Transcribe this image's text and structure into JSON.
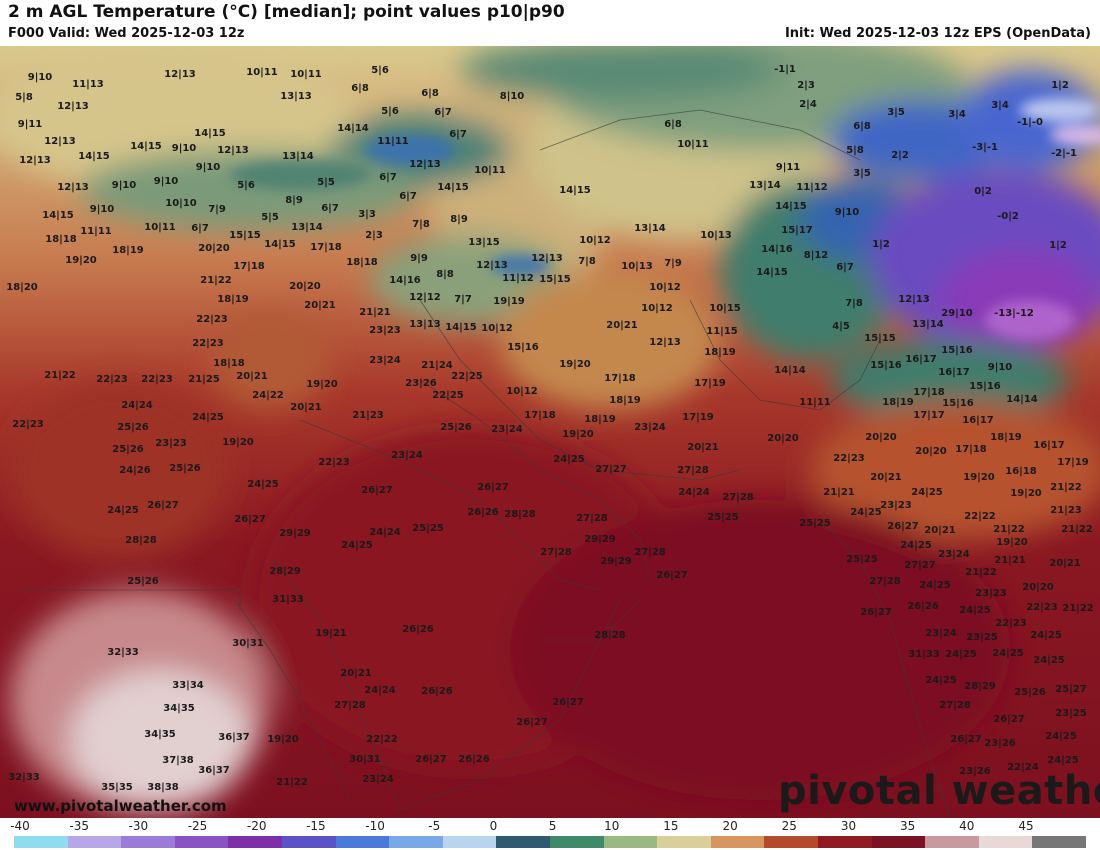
{
  "header": {
    "title": "2 m AGL Temperature (°C) [median]; point values p10|p90",
    "valid": "F000 Valid: Wed 2025-12-03 12z",
    "init": "Init: Wed 2025-12-03 12z EPS (OpenData)"
  },
  "footer": {
    "website": "www.pivotalweather.com",
    "brand": "pivotal weather"
  },
  "colorbar": {
    "ticks": [
      "-40",
      "-35",
      "-30",
      "-25",
      "-20",
      "-15",
      "-10",
      "-5",
      "0",
      "5",
      "10",
      "15",
      "20",
      "25",
      "30",
      "35",
      "40",
      "45"
    ],
    "colors": [
      "#8fdcf0",
      "#b7a6e8",
      "#9a7bd8",
      "#8a52c4",
      "#7e2fa8",
      "#5b52c8",
      "#4a7ad9",
      "#79a8e8",
      "#b8d4ef",
      "#2e5b70",
      "#3d8a6a",
      "#9bb782",
      "#d9cf9a",
      "#d79560",
      "#b5492b",
      "#8f1a22",
      "#7a1124",
      "#c89aa0",
      "#e8d8d8",
      "#777777"
    ]
  },
  "map": {
    "colors": {
      "cold": "#4a68c8",
      "cool": "#3f7d6c",
      "mild": "#d8cb8e",
      "warm": "#b8432d",
      "hot": "#82121f"
    },
    "points": [
      [
        "9|10",
        40,
        80
      ],
      [
        "11|13",
        88,
        87
      ],
      [
        "12|13",
        180,
        77
      ],
      [
        "10|11",
        262,
        75
      ],
      [
        "10|11",
        306,
        77
      ],
      [
        "5|6",
        380,
        73
      ],
      [
        "-1|1",
        785,
        72
      ],
      [
        "1|2",
        1060,
        88
      ],
      [
        "5|8",
        24,
        100
      ],
      [
        "12|13",
        73,
        109
      ],
      [
        "13|13",
        296,
        99
      ],
      [
        "6|8",
        360,
        91
      ],
      [
        "6|8",
        430,
        96
      ],
      [
        "8|10",
        512,
        99
      ],
      [
        "2|3",
        806,
        88
      ],
      [
        "9|11",
        30,
        127
      ],
      [
        "2|4",
        808,
        107
      ],
      [
        "3|5",
        896,
        115
      ],
      [
        "3|4",
        957,
        117
      ],
      [
        "3|4",
        1000,
        108
      ],
      [
        "-1|-0",
        1030,
        125
      ],
      [
        "14|15",
        210,
        136
      ],
      [
        "14|14",
        353,
        131
      ],
      [
        "5|6",
        390,
        114
      ],
      [
        "6|7",
        443,
        115
      ],
      [
        "6|8",
        673,
        127
      ],
      [
        "6|8",
        862,
        129
      ],
      [
        "2|2",
        900,
        158
      ],
      [
        "12|13",
        60,
        144
      ],
      [
        "14|15",
        146,
        149
      ],
      [
        "9|10",
        184,
        151
      ],
      [
        "12|13",
        233,
        153
      ],
      [
        "11|11",
        393,
        144
      ],
      [
        "6|7",
        458,
        137
      ],
      [
        "10|11",
        693,
        147
      ],
      [
        "5|8",
        855,
        153
      ],
      [
        "-3|-1",
        985,
        150
      ],
      [
        "-2|-1",
        1064,
        156
      ],
      [
        "12|13",
        35,
        163
      ],
      [
        "14|15",
        94,
        159
      ],
      [
        "13|14",
        298,
        159
      ],
      [
        "12|13",
        425,
        167
      ],
      [
        "10|11",
        490,
        173
      ],
      [
        "9|11",
        788,
        170
      ],
      [
        "3|5",
        862,
        176
      ],
      [
        "12|13",
        73,
        190
      ],
      [
        "9|10",
        124,
        188
      ],
      [
        "9|10",
        166,
        184
      ],
      [
        "9|10",
        208,
        170
      ],
      [
        "5|6",
        246,
        188
      ],
      [
        "5|5",
        326,
        185
      ],
      [
        "6|7",
        388,
        180
      ],
      [
        "14|15",
        453,
        190
      ],
      [
        "14|15",
        575,
        193
      ],
      [
        "13|14",
        765,
        188
      ],
      [
        "11|12",
        812,
        190
      ],
      [
        "0|2",
        983,
        194
      ],
      [
        "14|15",
        58,
        218
      ],
      [
        "9|10",
        102,
        212
      ],
      [
        "10|10",
        181,
        206
      ],
      [
        "7|9",
        217,
        212
      ],
      [
        "8|9",
        294,
        203
      ],
      [
        "6|7",
        330,
        211
      ],
      [
        "3|3",
        367,
        217
      ],
      [
        "6|7",
        408,
        199
      ],
      [
        "14|15",
        791,
        209
      ],
      [
        "9|10",
        847,
        215
      ],
      [
        "-0|2",
        1008,
        219
      ],
      [
        "11|11",
        96,
        234
      ],
      [
        "10|11",
        160,
        230
      ],
      [
        "6|7",
        200,
        231
      ],
      [
        "5|5",
        270,
        220
      ],
      [
        "13|14",
        307,
        230
      ],
      [
        "7|8",
        421,
        227
      ],
      [
        "8|9",
        459,
        222
      ],
      [
        "13|14",
        650,
        231
      ],
      [
        "15|17",
        797,
        233
      ],
      [
        "18|18",
        61,
        242
      ],
      [
        "15|15",
        245,
        238
      ],
      [
        "14|15",
        280,
        247
      ],
      [
        "17|18",
        326,
        250
      ],
      [
        "2|3",
        374,
        238
      ],
      [
        "13|15",
        484,
        245
      ],
      [
        "10|12",
        595,
        243
      ],
      [
        "10|13",
        716,
        238
      ],
      [
        "14|16",
        777,
        252
      ],
      [
        "1|2",
        881,
        247
      ],
      [
        "1|2",
        1058,
        248
      ],
      [
        "19|20",
        81,
        263
      ],
      [
        "18|19",
        128,
        253
      ],
      [
        "20|20",
        214,
        251
      ],
      [
        "17|18",
        249,
        269
      ],
      [
        "18|18",
        362,
        265
      ],
      [
        "9|9",
        419,
        261
      ],
      [
        "12|13",
        492,
        268
      ],
      [
        "12|13",
        547,
        261
      ],
      [
        "7|8",
        587,
        264
      ],
      [
        "10|13",
        637,
        269
      ],
      [
        "7|9",
        673,
        266
      ],
      [
        "8|12",
        816,
        258
      ],
      [
        "6|7",
        845,
        270
      ],
      [
        "18|20",
        22,
        290
      ],
      [
        "21|22",
        216,
        283
      ],
      [
        "14|16",
        405,
        283
      ],
      [
        "8|8",
        445,
        277
      ],
      [
        "11|12",
        518,
        281
      ],
      [
        "15|15",
        555,
        282
      ],
      [
        "20|20",
        305,
        289
      ],
      [
        "10|12",
        665,
        290
      ],
      [
        "14|15",
        772,
        275
      ],
      [
        "18|19",
        233,
        302
      ],
      [
        "12|12",
        425,
        300
      ],
      [
        "7|7",
        463,
        302
      ],
      [
        "19|19",
        509,
        304
      ],
      [
        "20|21",
        320,
        308
      ],
      [
        "10|15",
        725,
        311
      ],
      [
        "10|12",
        657,
        311
      ],
      [
        "7|8",
        854,
        306
      ],
      [
        "12|13",
        914,
        302
      ],
      [
        "29|10",
        957,
        316
      ],
      [
        "-13|-12",
        1014,
        316
      ],
      [
        "22|23",
        212,
        322
      ],
      [
        "21|21",
        375,
        315
      ],
      [
        "13|13",
        425,
        327
      ],
      [
        "14|15",
        461,
        330
      ],
      [
        "10|12",
        497,
        331
      ],
      [
        "20|21",
        622,
        328
      ],
      [
        "11|15",
        722,
        334
      ],
      [
        "4|5",
        841,
        329
      ],
      [
        "13|14",
        928,
        327
      ],
      [
        "22|23",
        208,
        346
      ],
      [
        "23|23",
        385,
        333
      ],
      [
        "12|13",
        665,
        345
      ],
      [
        "15|15",
        880,
        341
      ],
      [
        "15|16",
        957,
        353
      ],
      [
        "18|18",
        229,
        366
      ],
      [
        "23|24",
        385,
        363
      ],
      [
        "21|24",
        437,
        368
      ],
      [
        "15|16",
        523,
        350
      ],
      [
        "19|20",
        575,
        367
      ],
      [
        "18|19",
        720,
        355
      ],
      [
        "16|17",
        921,
        362
      ],
      [
        "15|16",
        886,
        368
      ],
      [
        "16|17",
        954,
        375
      ],
      [
        "9|10",
        1000,
        370
      ],
      [
        "21|22",
        60,
        378
      ],
      [
        "22|23",
        112,
        382
      ],
      [
        "22|23",
        157,
        382
      ],
      [
        "21|25",
        204,
        382
      ],
      [
        "20|21",
        252,
        379
      ],
      [
        "19|20",
        322,
        387
      ],
      [
        "23|26",
        421,
        386
      ],
      [
        "22|25",
        467,
        379
      ],
      [
        "17|18",
        620,
        381
      ],
      [
        "17|19",
        710,
        386
      ],
      [
        "14|14",
        790,
        373
      ],
      [
        "15|16",
        985,
        389
      ],
      [
        "24|24",
        137,
        408
      ],
      [
        "24|22",
        268,
        398
      ],
      [
        "22|25",
        448,
        398
      ],
      [
        "10|12",
        522,
        394
      ],
      [
        "18|19",
        625,
        403
      ],
      [
        "17|18",
        929,
        395
      ],
      [
        "18|19",
        898,
        405
      ],
      [
        "15|16",
        958,
        406
      ],
      [
        "14|14",
        1022,
        402
      ],
      [
        "11|11",
        815,
        405
      ],
      [
        "20|21",
        306,
        410
      ],
      [
        "21|23",
        368,
        418
      ],
      [
        "17|18",
        540,
        418
      ],
      [
        "18|19",
        600,
        422
      ],
      [
        "17|19",
        698,
        420
      ],
      [
        "17|17",
        929,
        418
      ],
      [
        "16|17",
        978,
        423
      ],
      [
        "22|23",
        28,
        427
      ],
      [
        "25|26",
        133,
        430
      ],
      [
        "24|25",
        208,
        420
      ],
      [
        "25|26",
        456,
        430
      ],
      [
        "23|24",
        507,
        432
      ],
      [
        "19|20",
        578,
        437
      ],
      [
        "23|24",
        650,
        430
      ],
      [
        "20|20",
        783,
        441
      ],
      [
        "20|20",
        881,
        440
      ],
      [
        "18|19",
        1006,
        440
      ],
      [
        "25|26",
        128,
        452
      ],
      [
        "23|23",
        171,
        446
      ],
      [
        "19|20",
        238,
        445
      ],
      [
        "20|21",
        703,
        450
      ],
      [
        "20|20",
        931,
        454
      ],
      [
        "17|18",
        971,
        452
      ],
      [
        "16|17",
        1049,
        448
      ],
      [
        "22|23",
        334,
        465
      ],
      [
        "23|24",
        407,
        458
      ],
      [
        "24|25",
        569,
        462
      ],
      [
        "27|27",
        611,
        472
      ],
      [
        "27|28",
        693,
        473
      ],
      [
        "22|23",
        849,
        461
      ],
      [
        "20|21",
        886,
        480
      ],
      [
        "19|20",
        979,
        480
      ],
      [
        "16|18",
        1021,
        474
      ],
      [
        "17|19",
        1073,
        465
      ],
      [
        "24|26",
        135,
        473
      ],
      [
        "25|26",
        185,
        471
      ],
      [
        "24|25",
        263,
        487
      ],
      [
        "26|27",
        377,
        493
      ],
      [
        "26|27",
        493,
        490
      ],
      [
        "24|24",
        694,
        495
      ],
      [
        "27|28",
        738,
        500
      ],
      [
        "21|21",
        839,
        495
      ],
      [
        "24|25",
        927,
        495
      ],
      [
        "19|20",
        1026,
        496
      ],
      [
        "21|22",
        1066,
        490
      ],
      [
        "24|25",
        123,
        513
      ],
      [
        "26|27",
        163,
        508
      ],
      [
        "26|26",
        483,
        515
      ],
      [
        "28|28",
        520,
        517
      ],
      [
        "27|28",
        592,
        521
      ],
      [
        "25|25",
        723,
        520
      ],
      [
        "25|25",
        815,
        526
      ],
      [
        "24|25",
        866,
        515
      ],
      [
        "23|23",
        896,
        508
      ],
      [
        "22|22",
        980,
        519
      ],
      [
        "21|23",
        1066,
        513
      ],
      [
        "26|27",
        250,
        522
      ],
      [
        "29|29",
        295,
        536
      ],
      [
        "24|24",
        385,
        535
      ],
      [
        "25|25",
        428,
        531
      ],
      [
        "26|27",
        903,
        529
      ],
      [
        "20|21",
        940,
        533
      ],
      [
        "21|22",
        1009,
        532
      ],
      [
        "21|22",
        1077,
        532
      ],
      [
        "28|28",
        141,
        543
      ],
      [
        "24|25",
        357,
        548
      ],
      [
        "29|29",
        600,
        542
      ],
      [
        "27|28",
        556,
        555
      ],
      [
        "27|28",
        650,
        555
      ],
      [
        "24|25",
        916,
        548
      ],
      [
        "23|24",
        954,
        557
      ],
      [
        "19|20",
        1012,
        545
      ],
      [
        "28|29",
        285,
        574
      ],
      [
        "29|29",
        616,
        564
      ],
      [
        "26|27",
        672,
        578
      ],
      [
        "25|25",
        862,
        562
      ],
      [
        "27|27",
        920,
        568
      ],
      [
        "21|22",
        981,
        575
      ],
      [
        "21|21",
        1010,
        563
      ],
      [
        "20|21",
        1065,
        566
      ],
      [
        "25|26",
        143,
        584
      ],
      [
        "27|28",
        885,
        584
      ],
      [
        "24|25",
        935,
        588
      ],
      [
        "23|23",
        991,
        596
      ],
      [
        "20|20",
        1038,
        590
      ],
      [
        "31|33",
        288,
        602
      ],
      [
        "26|27",
        876,
        615
      ],
      [
        "26|26",
        923,
        609
      ],
      [
        "24|25",
        975,
        613
      ],
      [
        "22|23",
        1042,
        610
      ],
      [
        "21|22",
        1078,
        611
      ],
      [
        "22|23",
        1011,
        626
      ],
      [
        "28|28",
        610,
        638
      ],
      [
        "26|26",
        418,
        632
      ],
      [
        "19|21",
        331,
        636
      ],
      [
        "23|24",
        941,
        636
      ],
      [
        "23|25",
        982,
        640
      ],
      [
        "24|25",
        1046,
        638
      ],
      [
        "30|31",
        248,
        646
      ],
      [
        "32|33",
        123,
        655
      ],
      [
        "31|33",
        924,
        657
      ],
      [
        "24|25",
        961,
        657
      ],
      [
        "24|25",
        1008,
        656
      ],
      [
        "24|25",
        1049,
        663
      ],
      [
        "20|21",
        356,
        676
      ],
      [
        "24|25",
        941,
        683
      ],
      [
        "28|29",
        980,
        689
      ],
      [
        "25|26",
        1030,
        695
      ],
      [
        "25|27",
        1071,
        692
      ],
      [
        "33|34",
        188,
        688
      ],
      [
        "24|24",
        380,
        693
      ],
      [
        "26|26",
        437,
        694
      ],
      [
        "27|28",
        350,
        708
      ],
      [
        "26|27",
        568,
        705
      ],
      [
        "27|28",
        955,
        708
      ],
      [
        "23|25",
        1071,
        716
      ],
      [
        "34|35",
        179,
        711
      ],
      [
        "26|27",
        532,
        725
      ],
      [
        "26|27",
        1009,
        722
      ],
      [
        "34|35",
        160,
        737
      ],
      [
        "36|37",
        234,
        740
      ],
      [
        "19|20",
        283,
        742
      ],
      [
        "22|22",
        382,
        742
      ],
      [
        "26|27",
        966,
        742
      ],
      [
        "23|26",
        1000,
        746
      ],
      [
        "24|25",
        1061,
        739
      ],
      [
        "37|38",
        178,
        763
      ],
      [
        "36|37",
        214,
        773
      ],
      [
        "30|31",
        365,
        762
      ],
      [
        "26|27",
        431,
        762
      ],
      [
        "26|26",
        474,
        762
      ],
      [
        "23|26",
        975,
        774
      ],
      [
        "22|24",
        1023,
        770
      ],
      [
        "24|25",
        1063,
        763
      ],
      [
        "23|24",
        378,
        782
      ],
      [
        "21|22",
        292,
        785
      ],
      [
        "32|33",
        24,
        780
      ],
      [
        "35|35",
        117,
        790
      ],
      [
        "38|38",
        163,
        790
      ]
    ]
  }
}
